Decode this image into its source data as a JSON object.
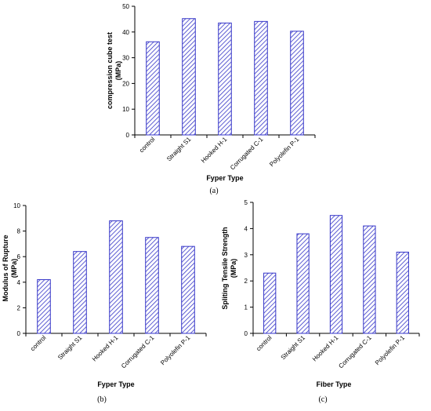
{
  "colors": {
    "bar_stroke": "#3535c8",
    "hatch": "#3535c8",
    "axis": "#000000"
  },
  "chart_data": [
    {
      "panel": "(a)",
      "type": "bar",
      "categories": [
        "control",
        "Straight S1",
        "Hooked H-1",
        "Corrugated C-1",
        "Polyolefin P-1"
      ],
      "values": [
        36.2,
        45.2,
        43.5,
        44.1,
        40.3
      ],
      "xlabel": "Fyper Type",
      "ylabel_lines": [
        "compression cube test",
        "(MPa)"
      ],
      "ylim": [
        0,
        50
      ],
      "yticks": [
        0,
        10,
        20,
        30,
        40,
        50
      ],
      "grid": false,
      "legend": "none"
    },
    {
      "panel": "(b)",
      "type": "bar",
      "categories": [
        "control",
        "Straight S1",
        "Hooked H-1",
        "Corrugated C-1",
        "Polyolefin P-1"
      ],
      "values": [
        4.2,
        6.4,
        8.8,
        7.5,
        6.8
      ],
      "xlabel": "Fyper Type",
      "ylabel_lines": [
        "Modulus of Rupture",
        "(MPa)"
      ],
      "ylim": [
        0,
        10
      ],
      "yticks": [
        0,
        2,
        4,
        6,
        8,
        10
      ],
      "grid": false,
      "legend": "none"
    },
    {
      "panel": "(c)",
      "type": "bar",
      "categories": [
        "control",
        "Straight S1",
        "Hooked H-1",
        "Corrugated C-1",
        "Polyolefin P-1"
      ],
      "values": [
        2.3,
        3.8,
        4.5,
        4.1,
        3.1
      ],
      "xlabel": "Fiber Type",
      "ylabel_lines": [
        "Spliting Tensile Strength",
        "(MPa)"
      ],
      "ylim": [
        0,
        5
      ],
      "yticks": [
        0,
        1,
        2,
        3,
        4,
        5
      ],
      "grid": false,
      "legend": "none"
    }
  ]
}
